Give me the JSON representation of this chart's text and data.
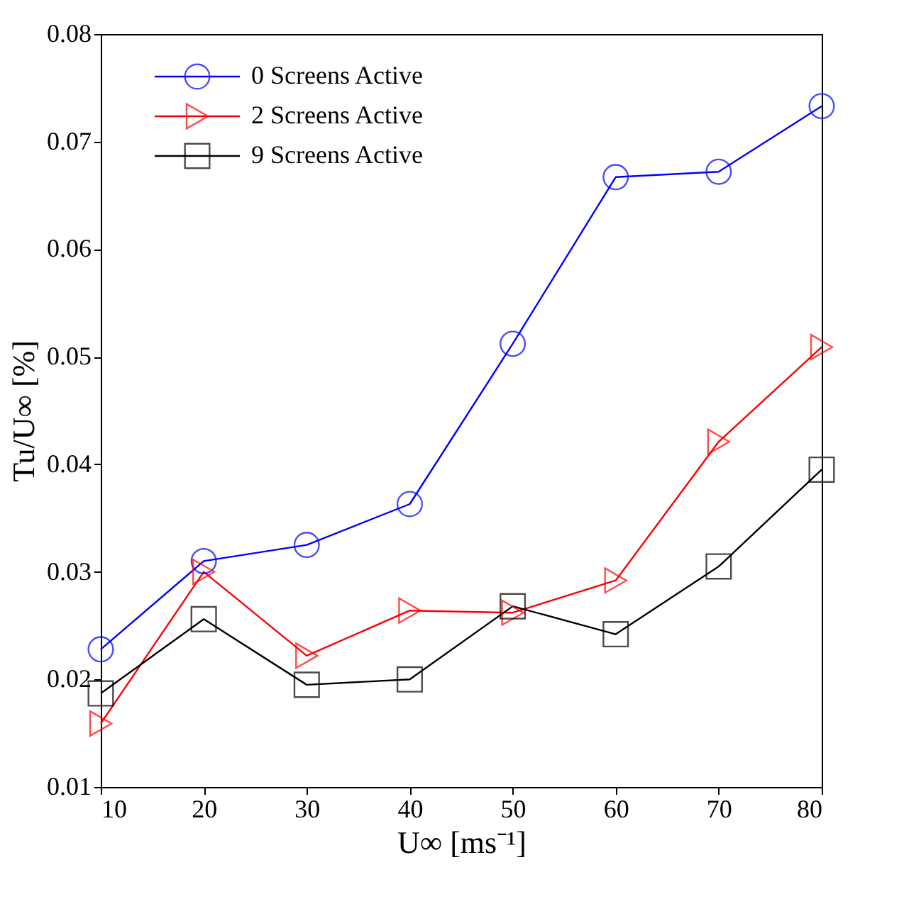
{
  "chart_data": {
    "type": "line",
    "xlabel": "U∞ [ms⁻¹]",
    "ylabel": "Tu/U∞ [%]",
    "x": [
      10,
      20,
      30,
      40,
      50,
      60,
      70,
      80
    ],
    "series": [
      {
        "name": "0 Screens Active",
        "color": "#0000ff",
        "marker": "circle",
        "values": [
          0.0228,
          0.031,
          0.0325,
          0.0363,
          0.0512,
          0.0667,
          0.0672,
          0.0733
        ]
      },
      {
        "name": "2 Screens Active",
        "color": "#ff0000",
        "marker": "triangle",
        "values": [
          0.0159,
          0.03,
          0.0222,
          0.0264,
          0.0262,
          0.0292,
          0.0421,
          0.0509
        ]
      },
      {
        "name": "9 Screens Active",
        "color": "#000000",
        "marker": "square",
        "values": [
          0.0187,
          0.0256,
          0.0195,
          0.02,
          0.0268,
          0.0242,
          0.0305,
          0.0395
        ]
      }
    ],
    "xlim": [
      10,
      80
    ],
    "xticks": [
      10,
      20,
      30,
      40,
      50,
      60,
      70,
      80
    ],
    "ylim": [
      0.01,
      0.08
    ],
    "yticks": [
      0.01,
      0.02,
      0.03,
      0.04,
      0.05,
      0.06,
      0.07,
      0.08
    ],
    "grid": false,
    "legend": "top left",
    "line_style": "solid"
  }
}
